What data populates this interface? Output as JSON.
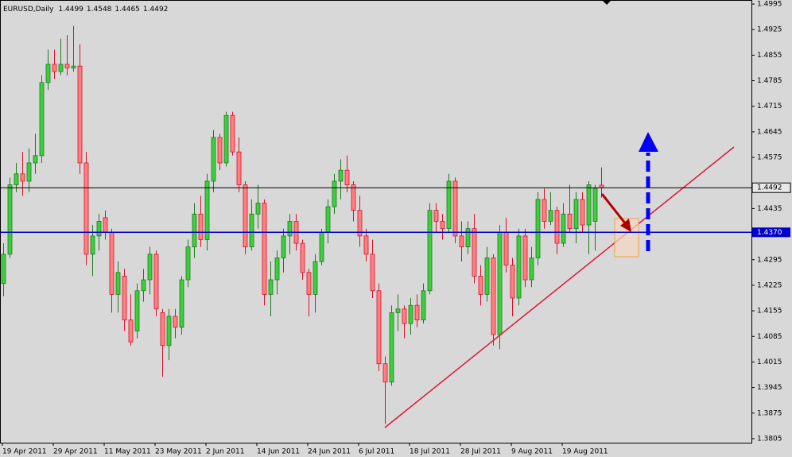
{
  "chart_data": {
    "type": "candlestick",
    "title": "EURUSD,Daily",
    "categories": [
      "19 Apr 2011",
      null,
      null,
      null,
      null,
      null,
      null,
      null,
      "29 Apr 2011",
      null,
      null,
      null,
      null,
      null,
      null,
      null,
      "11 May 2011",
      null,
      null,
      null,
      null,
      null,
      null,
      null,
      "23 May 2011",
      null,
      null,
      null,
      null,
      null,
      null,
      null,
      "2 Jun 2011",
      null,
      null,
      null,
      null,
      null,
      null,
      null,
      "14 Jun 2011",
      null,
      null,
      null,
      null,
      null,
      null,
      null,
      "24 Jun 2011",
      null,
      null,
      null,
      null,
      null,
      null,
      null,
      "6 Jul 2011",
      null,
      null,
      null,
      null,
      null,
      null,
      null,
      "18 Jul 2011",
      null,
      null,
      null,
      null,
      null,
      null,
      null,
      "28 Jul 2011",
      null,
      null,
      null,
      null,
      null,
      null,
      null,
      "9 Aug 2011",
      null,
      null,
      null,
      null,
      null,
      null,
      null,
      "19 Aug 2011",
      null,
      null,
      null,
      null,
      null,
      null
    ],
    "open": [
      1.423,
      1.431,
      1.45,
      1.453,
      1.451,
      1.456,
      1.458,
      1.478,
      1.483,
      1.481,
      1.483,
      1.482,
      1.4825,
      1.456,
      1.431,
      1.436,
      1.441,
      1.437,
      1.42,
      1.425,
      1.413,
      1.41,
      1.421,
      1.424,
      1.431,
      1.415,
      1.406,
      1.414,
      1.411,
      1.424,
      1.433,
      1.442,
      1.435,
      1.451,
      1.463,
      1.456,
      1.469,
      1.459,
      1.45,
      1.433,
      1.442,
      1.445,
      1.42,
      1.424,
      1.43,
      1.436,
      1.44,
      1.434,
      1.426,
      1.42,
      1.429,
      1.437,
      1.444,
      1.451,
      1.454,
      1.45,
      1.443,
      1.436,
      1.431,
      1.421,
      1.401,
      1.396,
      1.415,
      1.416,
      1.412,
      1.417,
      1.413,
      1.421,
      1.443,
      1.44,
      1.438,
      1.451,
      1.436,
      1.433,
      1.438,
      1.425,
      1.42,
      1.43,
      1.409,
      1.437,
      1.428,
      1.419,
      1.436,
      1.424,
      1.43,
      1.446,
      1.44,
      1.443,
      1.434,
      1.442,
      1.438,
      1.446,
      1.439,
      1.44,
      1.4499
    ],
    "high": [
      1.434,
      1.452,
      1.456,
      1.459,
      1.46,
      1.464,
      1.48,
      1.487,
      1.487,
      1.49,
      1.491,
      1.4935,
      1.4885,
      1.459,
      1.439,
      1.442,
      1.443,
      1.438,
      1.429,
      1.427,
      1.42,
      1.423,
      1.427,
      1.433,
      1.432,
      1.416,
      1.416,
      1.416,
      1.425,
      1.435,
      1.445,
      1.447,
      1.453,
      1.465,
      1.464,
      1.47,
      1.47,
      1.463,
      1.451,
      1.446,
      1.45,
      1.446,
      1.429,
      1.432,
      1.438,
      1.442,
      1.442,
      1.435,
      1.427,
      1.431,
      1.438,
      1.446,
      1.453,
      1.457,
      1.458,
      1.451,
      1.447,
      1.438,
      1.435,
      1.423,
      1.403,
      1.417,
      1.42,
      1.417,
      1.419,
      1.42,
      1.423,
      1.445,
      1.445,
      1.442,
      1.453,
      1.452,
      1.44,
      1.44,
      1.442,
      1.428,
      1.433,
      1.431,
      1.439,
      1.441,
      1.43,
      1.438,
      1.438,
      1.433,
      1.448,
      1.449,
      1.448,
      1.444,
      1.445,
      1.45,
      1.448,
      1.448,
      1.451,
      1.45,
      1.4548
    ],
    "low": [
      1.4195,
      1.43,
      1.448,
      1.447,
      1.448,
      1.453,
      1.456,
      1.476,
      1.479,
      1.48,
      1.48,
      1.481,
      1.453,
      1.428,
      1.425,
      1.432,
      1.435,
      1.415,
      1.415,
      1.41,
      1.406,
      1.408,
      1.418,
      1.42,
      1.414,
      1.3975,
      1.402,
      1.408,
      1.409,
      1.422,
      1.43,
      1.433,
      1.432,
      1.448,
      1.454,
      1.455,
      1.458,
      1.448,
      1.431,
      1.432,
      1.438,
      1.417,
      1.414,
      1.42,
      1.426,
      1.431,
      1.432,
      1.424,
      1.414,
      1.415,
      1.428,
      1.434,
      1.442,
      1.446,
      1.448,
      1.44,
      1.433,
      1.429,
      1.419,
      1.399,
      1.3845,
      1.395,
      1.41,
      1.408,
      1.409,
      1.411,
      1.412,
      1.42,
      1.437,
      1.435,
      1.437,
      1.434,
      1.429,
      1.431,
      1.423,
      1.417,
      1.418,
      1.406,
      1.405,
      1.426,
      1.414,
      1.417,
      1.422,
      1.422,
      1.428,
      1.438,
      1.439,
      1.431,
      1.433,
      1.437,
      1.434,
      1.437,
      1.431,
      1.432,
      1.4465
    ],
    "close": [
      1.431,
      1.45,
      1.453,
      1.451,
      1.456,
      1.458,
      1.478,
      1.483,
      1.481,
      1.483,
      1.482,
      1.4825,
      1.456,
      1.431,
      1.436,
      1.44,
      1.437,
      1.42,
      1.426,
      1.413,
      1.407,
      1.421,
      1.424,
      1.431,
      1.416,
      1.406,
      1.414,
      1.411,
      1.424,
      1.433,
      1.442,
      1.435,
      1.451,
      1.463,
      1.456,
      1.469,
      1.459,
      1.45,
      1.433,
      1.442,
      1.445,
      1.42,
      1.424,
      1.43,
      1.436,
      1.44,
      1.434,
      1.426,
      1.42,
      1.429,
      1.437,
      1.444,
      1.451,
      1.454,
      1.45,
      1.443,
      1.436,
      1.431,
      1.421,
      1.401,
      1.396,
      1.415,
      1.416,
      1.412,
      1.417,
      1.413,
      1.421,
      1.443,
      1.44,
      1.438,
      1.451,
      1.436,
      1.433,
      1.438,
      1.425,
      1.42,
      1.43,
      1.409,
      1.437,
      1.428,
      1.419,
      1.436,
      1.424,
      1.43,
      1.446,
      1.44,
      1.443,
      1.434,
      1.442,
      1.438,
      1.446,
      1.439,
      1.45,
      1.449,
      1.4492
    ],
    "up_color": "#3ccf3c",
    "down_color": "#ff8080",
    "up_edge": "#1f7a1f",
    "down_edge": "#d8102c",
    "level": {
      "value": 1.437,
      "label": "1.4370"
    },
    "level_color": "#0000cc",
    "ylim": [
      1.3794,
      1.5006
    ],
    "yticks": [
      1.4995,
      1.4925,
      1.4855,
      1.4785,
      1.4715,
      1.4645,
      1.4575,
      1.4435,
      1.4295,
      1.4225,
      1.4155,
      1.4085,
      1.4015,
      1.3945,
      1.3875,
      1.3805
    ]
  }
}
